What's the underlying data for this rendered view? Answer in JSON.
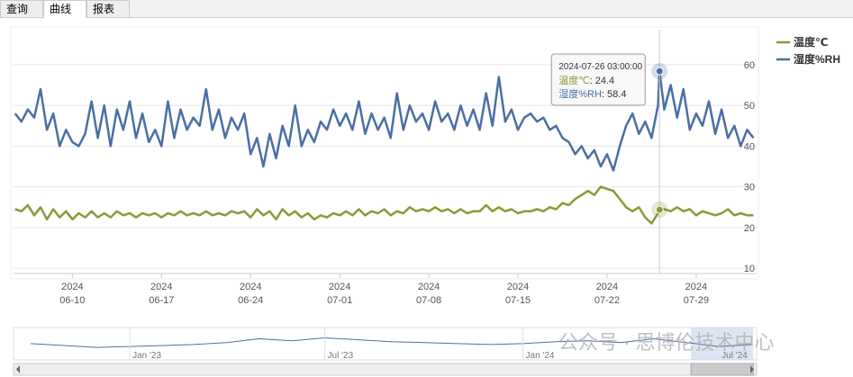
{
  "tabs": [
    "查询",
    "曲线",
    "报表"
  ],
  "watermark": "公众号 · 思博伦技术中心",
  "chart_data": {
    "type": "line",
    "x": [
      "2024-06-05 12:00:00",
      "2024-06-06 00:00:00",
      "2024-06-06 12:00:00",
      "2024-06-07 00:00:00",
      "2024-06-07 12:00:00",
      "2024-06-08 00:00:00",
      "2024-06-08 12:00:00",
      "2024-06-09 00:00:00",
      "2024-06-09 12:00:00",
      "2024-06-10 00:00:00",
      "2024-06-10 12:00:00",
      "2024-06-11 00:00:00",
      "2024-06-11 12:00:00",
      "2024-06-12 00:00:00",
      "2024-06-12 12:00:00",
      "2024-06-13 00:00:00",
      "2024-06-13 12:00:00",
      "2024-06-14 00:00:00",
      "2024-06-14 12:00:00",
      "2024-06-15 00:00:00",
      "2024-06-15 12:00:00",
      "2024-06-16 00:00:00",
      "2024-06-16 12:00:00",
      "2024-06-17 00:00:00",
      "2024-06-17 12:00:00",
      "2024-06-18 00:00:00",
      "2024-06-18 12:00:00",
      "2024-06-19 00:00:00",
      "2024-06-19 12:00:00",
      "2024-06-20 00:00:00",
      "2024-06-20 12:00:00",
      "2024-06-21 00:00:00",
      "2024-06-21 12:00:00",
      "2024-06-22 00:00:00",
      "2024-06-22 12:00:00",
      "2024-06-23 00:00:00",
      "2024-06-23 12:00:00",
      "2024-06-24 00:00:00",
      "2024-06-24 12:00:00",
      "2024-06-25 00:00:00",
      "2024-06-25 12:00:00",
      "2024-06-26 00:00:00",
      "2024-06-26 12:00:00",
      "2024-06-27 00:00:00",
      "2024-06-27 12:00:00",
      "2024-06-28 00:00:00",
      "2024-06-28 12:00:00",
      "2024-06-29 00:00:00",
      "2024-06-29 12:00:00",
      "2024-06-30 00:00:00",
      "2024-06-30 12:00:00",
      "2024-07-01 00:00:00",
      "2024-07-01 12:00:00",
      "2024-07-02 00:00:00",
      "2024-07-02 12:00:00",
      "2024-07-03 00:00:00",
      "2024-07-03 12:00:00",
      "2024-07-04 00:00:00",
      "2024-07-04 12:00:00",
      "2024-07-05 00:00:00",
      "2024-07-05 12:00:00",
      "2024-07-06 00:00:00",
      "2024-07-06 12:00:00",
      "2024-07-07 00:00:00",
      "2024-07-07 12:00:00",
      "2024-07-08 00:00:00",
      "2024-07-08 12:00:00",
      "2024-07-09 00:00:00",
      "2024-07-09 12:00:00",
      "2024-07-10 00:00:00",
      "2024-07-10 12:00:00",
      "2024-07-11 00:00:00",
      "2024-07-11 12:00:00",
      "2024-07-12 00:00:00",
      "2024-07-12 12:00:00",
      "2024-07-13 00:00:00",
      "2024-07-13 12:00:00",
      "2024-07-14 00:00:00",
      "2024-07-14 12:00:00",
      "2024-07-15 00:00:00",
      "2024-07-15 12:00:00",
      "2024-07-16 00:00:00",
      "2024-07-16 12:00:00",
      "2024-07-17 00:00:00",
      "2024-07-17 12:00:00",
      "2024-07-18 00:00:00",
      "2024-07-18 12:00:00",
      "2024-07-19 00:00:00",
      "2024-07-19 12:00:00",
      "2024-07-20 00:00:00",
      "2024-07-20 12:00:00",
      "2024-07-21 00:00:00",
      "2024-07-21 12:00:00",
      "2024-07-22 00:00:00",
      "2024-07-22 12:00:00",
      "2024-07-23 00:00:00",
      "2024-07-23 12:00:00",
      "2024-07-24 00:00:00",
      "2024-07-24 12:00:00",
      "2024-07-25 00:00:00",
      "2024-07-25 12:00:00",
      "2024-07-26 00:00:00",
      "2024-07-26 03:00:00",
      "2024-07-26 12:00:00",
      "2024-07-27 00:00:00",
      "2024-07-27 12:00:00",
      "2024-07-28 00:00:00",
      "2024-07-28 12:00:00",
      "2024-07-29 00:00:00",
      "2024-07-29 12:00:00",
      "2024-07-30 00:00:00",
      "2024-07-30 12:00:00",
      "2024-07-31 00:00:00",
      "2024-07-31 12:00:00",
      "2024-08-01 00:00:00",
      "2024-08-01 12:00:00",
      "2024-08-02 00:00:00",
      "2024-08-02 12:00:00"
    ],
    "series": [
      {
        "name": "温度℃",
        "color": "#8a9a3a",
        "values": [
          24.5,
          24,
          25.5,
          23,
          25,
          22,
          24.5,
          22.5,
          24,
          22,
          23.5,
          22.5,
          24,
          22.5,
          23.5,
          22.5,
          24,
          23,
          23.5,
          22.5,
          23.5,
          23,
          23.5,
          22.5,
          23.5,
          23,
          24,
          23,
          23.5,
          23,
          24,
          23,
          23.5,
          23,
          24,
          23.5,
          24,
          22.5,
          24.5,
          23,
          24,
          22,
          24.5,
          23,
          24,
          22.5,
          23.5,
          22,
          23,
          22.5,
          23.5,
          23,
          24,
          23,
          24.5,
          23,
          24,
          23.5,
          24.5,
          23,
          24,
          23.5,
          25,
          24,
          24.5,
          24,
          25,
          24,
          24.5,
          23.5,
          24.5,
          23.5,
          24,
          24,
          25.5,
          24,
          25,
          24,
          24.5,
          23.5,
          24,
          24,
          24.5,
          24,
          25,
          24.5,
          26,
          25.5,
          27,
          28,
          29,
          28,
          30,
          29.5,
          29,
          27,
          25,
          24,
          25,
          22.5,
          21,
          23.5,
          24.4,
          24.5,
          24,
          25,
          24,
          24.5,
          23,
          24,
          23.5,
          23,
          23.5,
          24.5,
          23,
          23.5,
          23,
          23
        ]
      },
      {
        "name": "湿度%RH",
        "color": "#4a6fa5",
        "values": [
          48,
          46,
          49,
          47,
          54,
          44,
          48,
          40,
          44,
          41,
          40,
          43,
          51,
          42,
          50,
          40,
          49,
          44,
          51,
          42,
          48,
          41,
          44,
          40,
          51,
          42,
          49,
          44,
          47,
          45,
          54,
          44,
          49,
          42,
          47,
          44,
          48,
          38,
          42,
          35,
          43,
          37,
          45,
          40,
          50,
          40,
          44,
          41,
          46,
          44,
          49,
          45,
          48,
          44,
          51,
          43,
          48,
          44,
          47,
          42,
          53,
          44,
          50,
          46,
          48,
          44,
          51,
          46,
          48,
          44,
          50,
          45,
          49,
          44,
          53,
          45,
          57,
          46,
          49,
          44,
          47,
          48,
          46,
          47,
          44,
          45,
          42,
          41,
          38,
          40,
          37,
          39,
          35,
          38,
          34,
          40,
          45,
          48,
          43,
          46,
          42,
          50,
          58.4,
          49,
          55,
          47,
          54,
          44,
          48,
          45,
          51,
          43,
          49,
          42,
          45,
          40,
          44,
          42
        ]
      }
    ],
    "xlim": [
      "2024-06-05 09:00:00",
      "2024-08-02 18:00:00"
    ],
    "xticks": [
      {
        "value": "2024-06-10 00:00:00",
        "label": [
          "2024",
          "06-10"
        ]
      },
      {
        "value": "2024-06-17 00:00:00",
        "label": [
          "2024",
          "06-17"
        ]
      },
      {
        "value": "2024-06-24 00:00:00",
        "label": [
          "2024",
          "06-24"
        ]
      },
      {
        "value": "2024-07-01 00:00:00",
        "label": [
          "2024",
          "07-01"
        ]
      },
      {
        "value": "2024-07-08 00:00:00",
        "label": [
          "2024",
          "07-08"
        ]
      },
      {
        "value": "2024-07-15 00:00:00",
        "label": [
          "2024",
          "07-15"
        ]
      },
      {
        "value": "2024-07-22 00:00:00",
        "label": [
          "2024",
          "07-22"
        ]
      },
      {
        "value": "2024-07-29 00:00:00",
        "label": [
          "2024",
          "07-29"
        ]
      }
    ],
    "ylim": [
      8.7,
      68.6
    ],
    "yticks": [
      10,
      20,
      30,
      40,
      50,
      60
    ],
    "grid": true,
    "legend": "top-right",
    "tooltip": {
      "x": "2024-07-26 03:00:00",
      "items": [
        {
          "name": "温度℃",
          "value": 24.4
        },
        {
          "name": "湿度%RH",
          "value": 58.4
        }
      ]
    },
    "navigator": {
      "x": [
        "2022-10",
        "2022-11",
        "2022-12",
        "2023-01",
        "2023-02",
        "2023-03",
        "2023-04",
        "2023-05",
        "2023-06",
        "2023-07",
        "2023-08",
        "2023-09",
        "2023-10",
        "2023-11",
        "2023-12",
        "2024-01",
        "2024-02",
        "2024-03",
        "2024-04",
        "2024-05",
        "2024-06",
        "2024-07",
        "2024-08"
      ],
      "values": [
        47,
        45,
        43,
        44,
        45,
        46,
        48,
        52,
        50,
        53,
        51,
        49,
        48,
        47,
        46,
        47,
        49,
        50,
        48,
        52,
        48,
        44,
        46
      ],
      "xlim": [
        "2022-09-15",
        "2024-08-05"
      ],
      "ylim": [
        30,
        60
      ],
      "xticks": [
        {
          "value": "2023-01-01",
          "label": "Jan '23"
        },
        {
          "value": "2023-07-01",
          "label": "Jul '23"
        },
        {
          "value": "2024-01-01",
          "label": "Jan '24"
        },
        {
          "value": "2024-07-01",
          "label": "Jul '24"
        }
      ]
    }
  }
}
